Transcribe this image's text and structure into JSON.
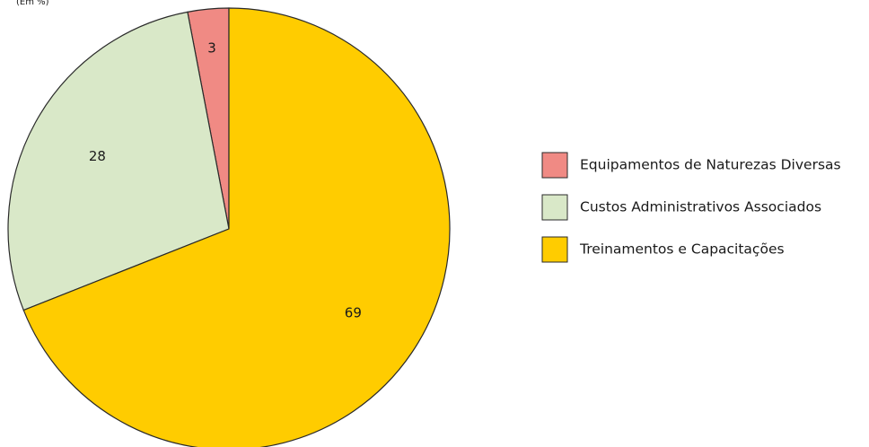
{
  "chart_data": {
    "type": "pie",
    "subtitle": "(Em %)",
    "categories": [
      "Equipamentos de Naturezas Diversas",
      "Custos Administrativos Associados",
      "Treinamentos e Capacitações"
    ],
    "values": [
      3,
      28,
      69
    ],
    "colors": [
      "#f08a84",
      "#d9e8c8",
      "#ffcc00"
    ]
  }
}
